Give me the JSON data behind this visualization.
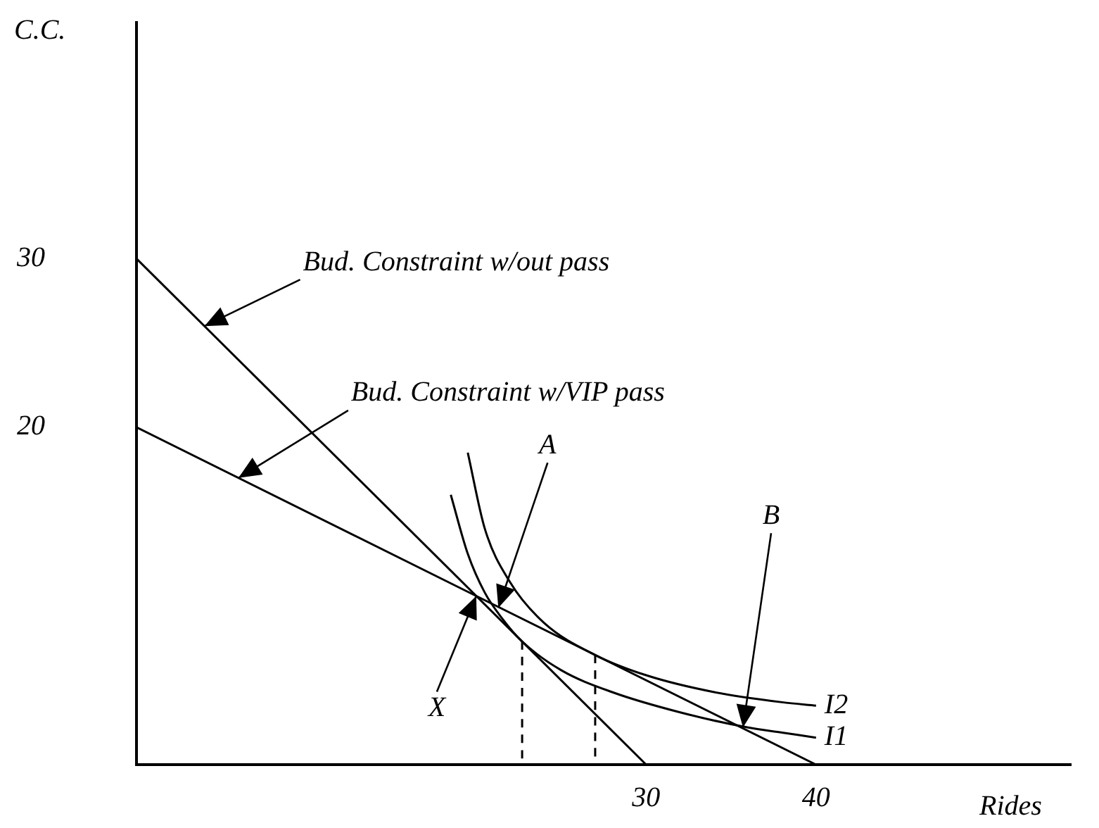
{
  "chart_data": {
    "type": "line",
    "xlabel": "Rides",
    "ylabel": "C.C.",
    "xlim": [
      0,
      55
    ],
    "xticks": [
      30,
      40
    ],
    "ylim": [
      0,
      44
    ],
    "yticks": [
      20,
      30
    ],
    "grid": false,
    "legend": false,
    "marker": "none",
    "series": [
      {
        "x": [
          0,
          30
        ],
        "values": [
          30,
          0
        ],
        "color": "#000000"
      },
      {
        "x": [
          0,
          40
        ],
        "values": [
          20,
          0
        ],
        "color": "#000000"
      },
      {
        "name": "I1",
        "x": [
          18.5,
          19.5,
          20.5,
          21.5,
          22.7,
          25,
          28,
          32,
          36,
          38,
          40
        ],
        "values": [
          16,
          12.5,
          10.2,
          8.7,
          7.3,
          5.6,
          4.3,
          3.1,
          2.2,
          1.9,
          1.6
        ],
        "color": "#000000"
      },
      {
        "name": "I2",
        "x": [
          19.5,
          20.5,
          22,
          24,
          27,
          30,
          34,
          38,
          40
        ],
        "values": [
          18.5,
          14,
          10.8,
          8.4,
          6.5,
          5.3,
          4.3,
          3.7,
          3.5
        ],
        "color": "#000000"
      },
      {
        "x": [
          22.7,
          22.7
        ],
        "values": [
          7.3,
          0
        ],
        "color": "#000000",
        "line_style": "dashed"
      },
      {
        "x": [
          27,
          27
        ],
        "values": [
          6.5,
          0
        ],
        "color": "#000000",
        "line_style": "dashed"
      }
    ],
    "annotations": [
      {
        "text": "Bud. Constraint w/out pass",
        "x": 4,
        "y": 26
      },
      {
        "text": "Bud. Constraint w/VIP pass",
        "x": 6,
        "y": 17
      },
      {
        "text": "A",
        "x": 21.3,
        "y": 9.3
      },
      {
        "text": "X",
        "x": 20,
        "y": 10
      },
      {
        "text": "B",
        "x": 35.7,
        "y": 2.2
      }
    ]
  }
}
